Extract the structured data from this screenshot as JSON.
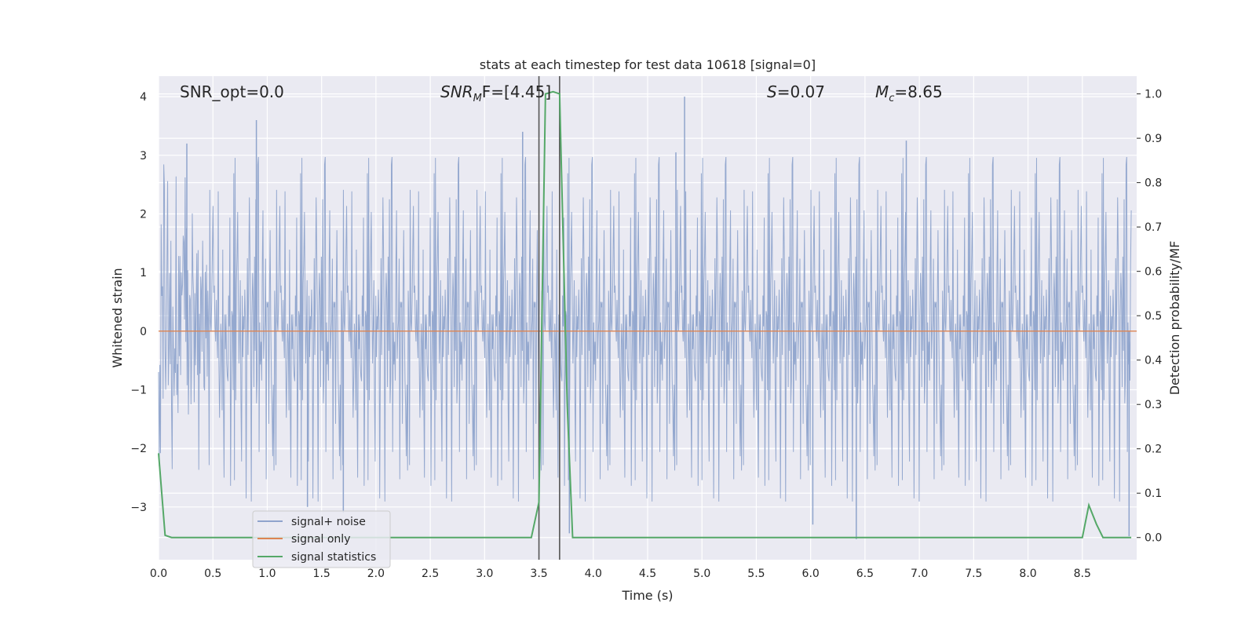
{
  "chart_data": {
    "type": "line",
    "title": "stats at each timestep for test data 10618 [signal=0]",
    "xlabel": "Time (s)",
    "ylabel": "Whitened strain",
    "y2label": "Detection probability/MF",
    "xlim": [
      0.0,
      9.0
    ],
    "ylim": [
      -3.9,
      4.35
    ],
    "y2lim": [
      -0.05,
      1.04
    ],
    "xticks": [
      "0.0",
      "0.5",
      "1.0",
      "1.5",
      "2.0",
      "2.5",
      "3.0",
      "3.5",
      "4.0",
      "4.5",
      "5.0",
      "5.5",
      "6.0",
      "6.5",
      "7.0",
      "7.5",
      "8.0",
      "8.5"
    ],
    "yticks": [
      "4",
      "3",
      "2",
      "1",
      "0",
      "−1",
      "−2",
      "−3"
    ],
    "y2ticks": [
      "1.0",
      "0.9",
      "0.8",
      "0.7",
      "0.6",
      "0.5",
      "0.4",
      "0.3",
      "0.2",
      "0.1",
      "0.0"
    ],
    "grid": true,
    "legend_position": "lower-left",
    "annotations": {
      "snr_opt": "SNR_opt=0.0",
      "snr_mf_prefix": "SNR",
      "snr_mf_sub": "M",
      "snr_mf_suffix": "F=[4.45]",
      "s_italic": "S",
      "s_value": "=0.07",
      "mc_italic": "M",
      "mc_sub": "c",
      "mc_value": "=8.65"
    },
    "vertical_lines_x": [
      3.5,
      3.69
    ],
    "series": [
      {
        "name": "signal+ noise",
        "color": "#8fa4cc",
        "kind": "noise",
        "envelope_typical": [
          -1.0,
          1.0
        ],
        "envelope_max": [
          -3.6,
          4.0
        ],
        "spikes": [
          {
            "x": 0.9,
            "y": 3.6
          },
          {
            "x": 4.84,
            "y": 4.0
          },
          {
            "x": 0.26,
            "y": 3.2
          },
          {
            "x": 3.35,
            "y": 3.4
          },
          {
            "x": 6.88,
            "y": 3.25
          },
          {
            "x": 4.76,
            "y": 3.05
          },
          {
            "x": 1.37,
            "y": -3.0
          },
          {
            "x": 1.7,
            "y": -3.1
          },
          {
            "x": 6.42,
            "y": -3.55
          },
          {
            "x": 6.02,
            "y": -3.3
          },
          {
            "x": 3.78,
            "y": -3.45
          },
          {
            "x": 8.93,
            "y": -3.5
          }
        ]
      },
      {
        "name": "signal only",
        "color": "#dd8452",
        "kind": "flat",
        "value": 0.0
      },
      {
        "name": "signal statistics",
        "color": "#55a868",
        "kind": "stat",
        "axis": "right",
        "x": [
          0.0,
          0.06,
          0.12,
          3.43,
          3.5,
          3.56,
          3.63,
          3.69,
          3.76,
          3.81,
          8.5,
          8.56,
          8.63,
          8.69,
          8.95
        ],
        "y": [
          0.19,
          0.005,
          0.0,
          0.0,
          0.08,
          1.0,
          1.005,
          1.0,
          0.3,
          0.0,
          0.0,
          0.073,
          0.03,
          0.0,
          0.0
        ]
      }
    ]
  }
}
